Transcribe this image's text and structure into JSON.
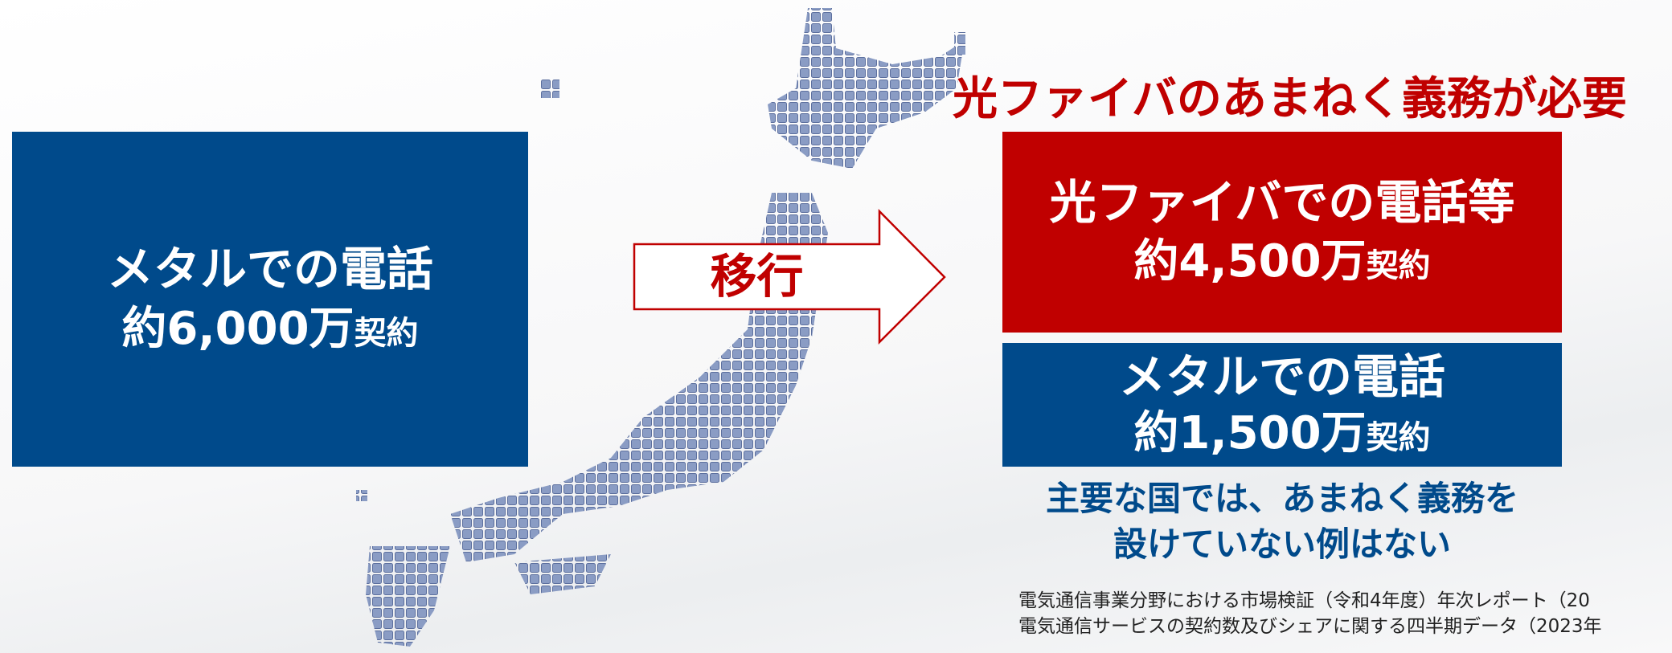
{
  "before": {
    "title": "メタルでの電話",
    "amount": "約6,000万",
    "unit": "契約"
  },
  "arrow_label": "移行",
  "heading": "光ファイバのあまねく義務が必要",
  "after": [
    {
      "title": "光ファイバでの電話等",
      "amount": "約4,500万",
      "unit": "契約"
    },
    {
      "title": "メタルでの電話",
      "amount": "約1,500万",
      "unit": "契約"
    }
  ],
  "note": [
    "主要な国では、あまねく義務を",
    "設けていない例はない"
  ],
  "sources": [
    "電気通信事業分野における市場検証（令和4年度）年次レポート（20",
    "電気通信サービスの契約数及びシェアに関する四半期データ（2023年"
  ]
}
